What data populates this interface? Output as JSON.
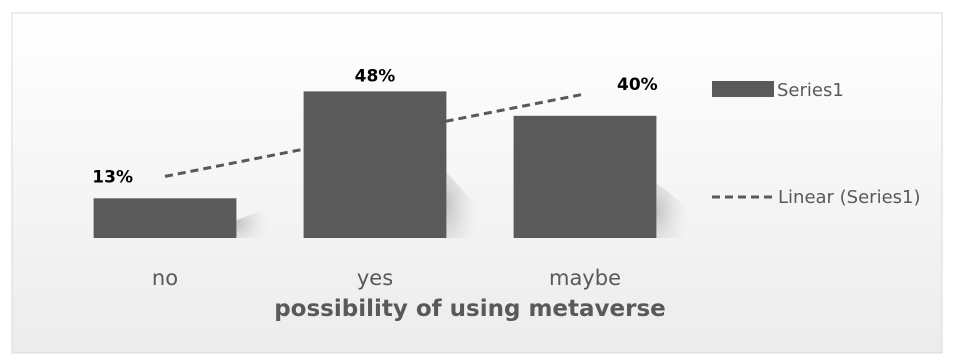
{
  "chart_data": {
    "type": "bar",
    "categories": [
      "no",
      "yes",
      "maybe"
    ],
    "values": [
      13,
      48,
      40
    ],
    "data_labels": [
      "13%",
      "48%",
      "40%"
    ],
    "value_unit": "%",
    "title": "",
    "xlabel": "possibility of using metaverse",
    "ylabel": "",
    "ylim": [
      0,
      55
    ],
    "grid": false,
    "legend_placement": "right",
    "trendline": {
      "type": "linear"
    },
    "series": [
      {
        "name": "Series1",
        "values": [
          13,
          48,
          40
        ],
        "color": "#5a5a5a"
      }
    ],
    "legend": [
      {
        "label": "Series1",
        "kind": "bar"
      },
      {
        "label": "Linear (Series1)",
        "kind": "dashed-line"
      }
    ],
    "colors": {
      "bar": "#5a5a5a",
      "trend": "#595959",
      "text": "#595959",
      "background": "#f2f2f2"
    }
  }
}
